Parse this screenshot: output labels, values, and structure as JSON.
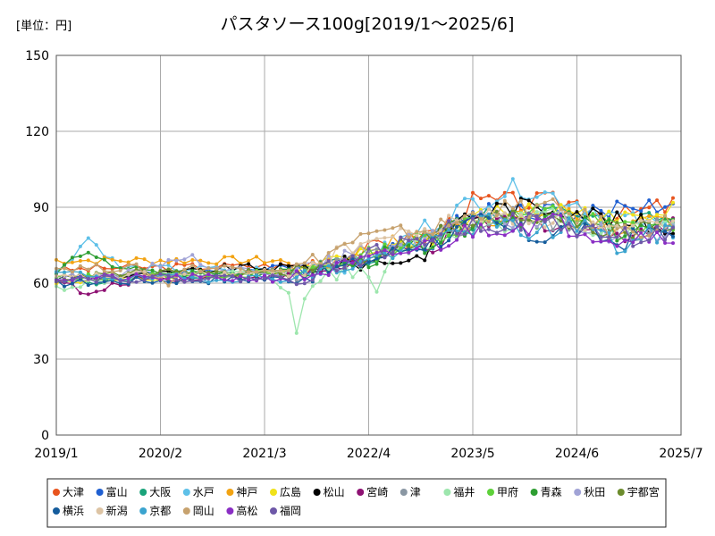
{
  "chart_data": {
    "type": "line",
    "title": "パスタソース100g[2019/1～2025/6]",
    "unit_label": "[単位：円]",
    "ylim": [
      0,
      150
    ],
    "y_ticks": [
      "0",
      "30",
      "60",
      "90",
      "120",
      "150"
    ],
    "x_ticks": [
      {
        "label": "2019/1",
        "month_index": 0
      },
      {
        "label": "2020/2",
        "month_index": 13
      },
      {
        "label": "2021/3",
        "month_index": 26
      },
      {
        "label": "2022/4",
        "month_index": 39
      },
      {
        "label": "2023/5",
        "month_index": 52
      },
      {
        "label": "2024/6",
        "month_index": 65
      },
      {
        "label": "2025/7",
        "month_index": 78
      }
    ],
    "grid": true,
    "legend_position": "bottom",
    "series": [
      {
        "name": "大津",
        "color": "#e8541e",
        "keyframes": [
          [
            0,
            65
          ],
          [
            6,
            66
          ],
          [
            30,
            67
          ],
          [
            37,
            72
          ],
          [
            48,
            81
          ],
          [
            52,
            92
          ],
          [
            65,
            92
          ],
          [
            70,
            86
          ],
          [
            77,
            91
          ]
        ]
      },
      {
        "name": "富山",
        "color": "#1f5fd1",
        "keyframes": [
          [
            0,
            62
          ],
          [
            10,
            63
          ],
          [
            30,
            66
          ],
          [
            38,
            70
          ],
          [
            48,
            78
          ],
          [
            52,
            88
          ],
          [
            60,
            89
          ],
          [
            66,
            86
          ],
          [
            72,
            91
          ],
          [
            77,
            91
          ]
        ]
      },
      {
        "name": "大阪",
        "color": "#1aa37a",
        "keyframes": [
          [
            0,
            60
          ],
          [
            10,
            62
          ],
          [
            30,
            64
          ],
          [
            38,
            69
          ],
          [
            48,
            79
          ],
          [
            53,
            86
          ],
          [
            62,
            88
          ],
          [
            68,
            84
          ],
          [
            77,
            86
          ]
        ]
      },
      {
        "name": "水戸",
        "color": "#5ec0e8",
        "keyframes": [
          [
            0,
            64
          ],
          [
            4,
            78
          ],
          [
            8,
            66
          ],
          [
            30,
            65
          ],
          [
            38,
            68
          ],
          [
            46,
            82
          ],
          [
            52,
            92
          ],
          [
            58,
            98
          ],
          [
            65,
            92
          ],
          [
            72,
            84
          ],
          [
            77,
            82
          ]
        ]
      },
      {
        "name": "神戸",
        "color": "#f2a312",
        "keyframes": [
          [
            0,
            69
          ],
          [
            10,
            69
          ],
          [
            28,
            69
          ],
          [
            31,
            64
          ],
          [
            38,
            73
          ],
          [
            48,
            80
          ],
          [
            53,
            86
          ],
          [
            62,
            88
          ],
          [
            70,
            82
          ],
          [
            77,
            83
          ]
        ]
      },
      {
        "name": "広島",
        "color": "#f0e21a",
        "keyframes": [
          [
            0,
            60
          ],
          [
            10,
            62
          ],
          [
            30,
            64
          ],
          [
            38,
            71
          ],
          [
            48,
            79
          ],
          [
            54,
            87
          ],
          [
            64,
            89
          ],
          [
            70,
            84
          ],
          [
            77,
            92
          ]
        ]
      },
      {
        "name": "松山",
        "color": "#000000",
        "keyframes": [
          [
            0,
            62
          ],
          [
            12,
            63
          ],
          [
            22,
            66
          ],
          [
            30,
            66
          ],
          [
            38,
            68
          ],
          [
            45,
            70
          ],
          [
            50,
            85
          ],
          [
            56,
            90
          ],
          [
            64,
            90
          ],
          [
            70,
            84
          ],
          [
            77,
            82
          ]
        ]
      },
      {
        "name": "宮崎",
        "color": "#8e1173",
        "keyframes": [
          [
            0,
            62
          ],
          [
            4,
            55
          ],
          [
            10,
            62
          ],
          [
            30,
            63
          ],
          [
            38,
            68
          ],
          [
            48,
            76
          ],
          [
            53,
            84
          ],
          [
            60,
            85
          ],
          [
            68,
            80
          ],
          [
            77,
            82
          ]
        ]
      },
      {
        "name": "津",
        "color": "#8a97a3",
        "keyframes": [
          [
            0,
            62
          ],
          [
            10,
            63
          ],
          [
            30,
            64
          ],
          [
            38,
            70
          ],
          [
            48,
            78
          ],
          [
            53,
            84
          ],
          [
            62,
            85
          ],
          [
            70,
            80
          ],
          [
            77,
            82
          ]
        ]
      },
      {
        "name": "福井",
        "color": "#9de6ad",
        "keyframes": [
          [
            0,
            58
          ],
          [
            8,
            62
          ],
          [
            26,
            64
          ],
          [
            29,
            55
          ],
          [
            30,
            42
          ],
          [
            32,
            62
          ],
          [
            38,
            66
          ],
          [
            40,
            54
          ],
          [
            42,
            72
          ],
          [
            48,
            78
          ],
          [
            53,
            84
          ],
          [
            62,
            86
          ],
          [
            70,
            80
          ],
          [
            77,
            84
          ]
        ]
      },
      {
        "name": "甲府",
        "color": "#5ed13a",
        "keyframes": [
          [
            0,
            62
          ],
          [
            10,
            63
          ],
          [
            30,
            64
          ],
          [
            38,
            70
          ],
          [
            48,
            80
          ],
          [
            53,
            86
          ],
          [
            62,
            88
          ],
          [
            70,
            82
          ],
          [
            77,
            84
          ]
        ]
      },
      {
        "name": "青森",
        "color": "#2e9e32",
        "keyframes": [
          [
            0,
            64
          ],
          [
            3,
            72
          ],
          [
            6,
            68
          ],
          [
            12,
            64
          ],
          [
            30,
            64
          ],
          [
            38,
            68
          ],
          [
            48,
            78
          ],
          [
            53,
            86
          ],
          [
            62,
            86
          ],
          [
            70,
            80
          ],
          [
            77,
            82
          ]
        ]
      },
      {
        "name": "秋田",
        "color": "#a1a3d6",
        "keyframes": [
          [
            0,
            62
          ],
          [
            10,
            64
          ],
          [
            16,
            71
          ],
          [
            20,
            66
          ],
          [
            30,
            64
          ],
          [
            38,
            72
          ],
          [
            48,
            80
          ],
          [
            53,
            84
          ],
          [
            62,
            86
          ],
          [
            70,
            78
          ],
          [
            77,
            82
          ]
        ]
      },
      {
        "name": "宇都宮",
        "color": "#6c8c2c",
        "keyframes": [
          [
            0,
            62
          ],
          [
            10,
            64
          ],
          [
            30,
            64
          ],
          [
            38,
            70
          ],
          [
            48,
            80
          ],
          [
            53,
            85
          ],
          [
            62,
            87
          ],
          [
            70,
            80
          ],
          [
            77,
            83
          ]
        ]
      },
      {
        "name": "横浜",
        "color": "#155c9c",
        "keyframes": [
          [
            0,
            60
          ],
          [
            10,
            61
          ],
          [
            30,
            62
          ],
          [
            38,
            68
          ],
          [
            48,
            78
          ],
          [
            53,
            84
          ],
          [
            60,
            78
          ],
          [
            64,
            82
          ],
          [
            70,
            76
          ],
          [
            77,
            82
          ]
        ]
      },
      {
        "name": "新潟",
        "color": "#ddc4a4",
        "keyframes": [
          [
            0,
            62
          ],
          [
            10,
            63
          ],
          [
            30,
            64
          ],
          [
            38,
            76
          ],
          [
            48,
            82
          ],
          [
            53,
            86
          ],
          [
            62,
            86
          ],
          [
            70,
            80
          ],
          [
            77,
            82
          ]
        ]
      },
      {
        "name": "京都",
        "color": "#3ba4cf",
        "keyframes": [
          [
            0,
            64
          ],
          [
            10,
            62
          ],
          [
            30,
            62
          ],
          [
            38,
            68
          ],
          [
            48,
            78
          ],
          [
            53,
            84
          ],
          [
            60,
            80
          ],
          [
            66,
            84
          ],
          [
            70,
            74
          ],
          [
            77,
            82
          ]
        ]
      },
      {
        "name": "岡山",
        "color": "#c7a26e",
        "keyframes": [
          [
            0,
            66
          ],
          [
            10,
            66
          ],
          [
            14,
            60
          ],
          [
            16,
            66
          ],
          [
            30,
            66
          ],
          [
            38,
            78
          ],
          [
            48,
            82
          ],
          [
            53,
            88
          ],
          [
            60,
            90
          ],
          [
            64,
            88
          ],
          [
            70,
            80
          ],
          [
            77,
            84
          ]
        ]
      },
      {
        "name": "高松",
        "color": "#8a2ec4",
        "keyframes": [
          [
            0,
            62
          ],
          [
            10,
            62
          ],
          [
            30,
            62
          ],
          [
            38,
            68
          ],
          [
            48,
            76
          ],
          [
            53,
            82
          ],
          [
            62,
            84
          ],
          [
            70,
            78
          ],
          [
            77,
            80
          ]
        ]
      },
      {
        "name": "福岡",
        "color": "#6e58a8",
        "keyframes": [
          [
            0,
            62
          ],
          [
            10,
            62
          ],
          [
            30,
            62
          ],
          [
            38,
            70
          ],
          [
            48,
            80
          ],
          [
            53,
            84
          ],
          [
            62,
            84
          ],
          [
            70,
            78
          ],
          [
            77,
            80
          ]
        ]
      }
    ]
  }
}
